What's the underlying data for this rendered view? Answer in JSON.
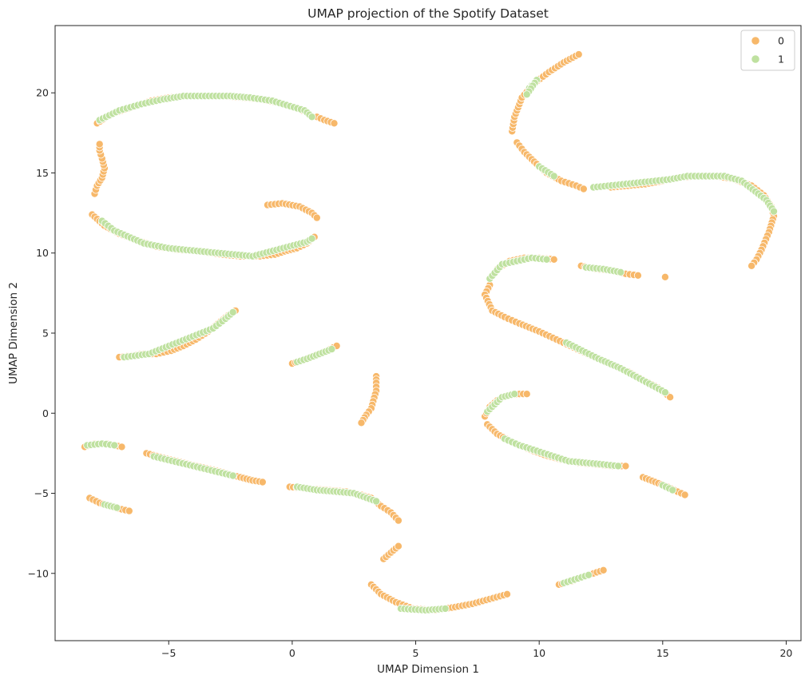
{
  "chart_data": {
    "type": "scatter",
    "title": "UMAP projection of the Spotify Dataset",
    "xlabel": "UMAP Dimension 1",
    "ylabel": "UMAP Dimension 2",
    "xlim": [
      -9.6,
      20.6
    ],
    "ylim": [
      -14.2,
      24.2
    ],
    "x_ticks": [
      -5,
      0,
      5,
      10,
      15,
      20
    ],
    "y_ticks": [
      -10,
      -5,
      0,
      5,
      10,
      15,
      20
    ],
    "x_tick_labels": [
      "−5",
      "0",
      "5",
      "10",
      "15",
      "20"
    ],
    "y_tick_labels": [
      "−10",
      "−5",
      "0",
      "5",
      "10",
      "15",
      "20"
    ],
    "grid": false,
    "legend": {
      "position": "top-right",
      "entries": [
        "0",
        "1"
      ]
    },
    "colors": {
      "0": "#f7b86a",
      "1": "#bfe1a0"
    },
    "series": [
      {
        "name": "0",
        "color": "#f7b86a",
        "segments": [
          [
            [
              -7.9,
              18.1
            ],
            [
              -7.3,
              18.7
            ],
            [
              -6.5,
              19.1
            ],
            [
              -5.7,
              19.5
            ],
            [
              -5.0,
              19.7
            ],
            [
              -4.3,
              19.8
            ],
            [
              -3.5,
              19.8
            ],
            [
              -2.8,
              19.8
            ],
            [
              -2.0,
              19.7
            ],
            [
              -1.3,
              19.6
            ],
            [
              -0.6,
              19.4
            ],
            [
              0.1,
              19.1
            ],
            [
              0.4,
              18.9
            ]
          ],
          [
            [
              1.0,
              18.5
            ],
            [
              1.3,
              18.3
            ],
            [
              1.7,
              18.1
            ]
          ],
          [
            [
              -8.0,
              13.7
            ],
            [
              -7.9,
              14.2
            ],
            [
              -7.7,
              14.7
            ],
            [
              -7.6,
              15.3
            ],
            [
              -7.7,
              15.9
            ],
            [
              -7.8,
              16.4
            ],
            [
              -7.8,
              16.8
            ]
          ],
          [
            [
              -8.1,
              12.4
            ],
            [
              -7.6,
              11.7
            ],
            [
              -7.0,
              11.2
            ],
            [
              -6.3,
              10.8
            ],
            [
              -5.5,
              10.4
            ],
            [
              -4.6,
              10.2
            ],
            [
              -3.7,
              10.1
            ],
            [
              -2.8,
              9.9
            ],
            [
              -2.1,
              9.8
            ],
            [
              -1.3,
              9.8
            ],
            [
              -0.7,
              9.9
            ],
            [
              -0.3,
              10.1
            ],
            [
              0.2,
              10.3
            ],
            [
              0.6,
              10.6
            ],
            [
              0.9,
              11.0
            ]
          ],
          [
            [
              -1.0,
              13.0
            ],
            [
              -0.4,
              13.1
            ],
            [
              0.3,
              12.9
            ],
            [
              0.8,
              12.5
            ],
            [
              1.0,
              12.2
            ]
          ],
          [
            [
              -7.0,
              3.5
            ],
            [
              -6.5,
              3.6
            ],
            [
              -6.0,
              3.7
            ],
            [
              -5.5,
              3.7
            ],
            [
              -4.9,
              3.9
            ],
            [
              -4.4,
              4.2
            ],
            [
              -3.9,
              4.6
            ],
            [
              -3.4,
              5.1
            ],
            [
              -3.0,
              5.6
            ],
            [
              -2.6,
              6.1
            ],
            [
              -2.3,
              6.4
            ]
          ],
          [
            [
              0.0,
              3.1
            ],
            [
              0.4,
              3.3
            ],
            [
              0.9,
              3.6
            ],
            [
              1.4,
              3.9
            ],
            [
              1.8,
              4.2
            ]
          ],
          [
            [
              3.4,
              2.3
            ],
            [
              3.4,
              1.9
            ],
            [
              3.4,
              1.4
            ],
            [
              3.2,
              0.3
            ],
            [
              3.0,
              -0.1
            ],
            [
              2.8,
              -0.6
            ]
          ],
          [
            [
              -8.4,
              -2.1
            ],
            [
              -8.0,
              -1.9
            ],
            [
              -7.5,
              -1.9
            ],
            [
              -6.9,
              -2.1
            ]
          ],
          [
            [
              -5.9,
              -2.5
            ],
            [
              -5.2,
              -2.8
            ],
            [
              -4.4,
              -3.1
            ],
            [
              -3.6,
              -3.4
            ],
            [
              -2.8,
              -3.7
            ],
            [
              -2.1,
              -4.0
            ],
            [
              -1.6,
              -4.2
            ],
            [
              -1.2,
              -4.3
            ]
          ],
          [
            [
              -8.2,
              -5.3
            ],
            [
              -7.8,
              -5.6
            ],
            [
              -7.4,
              -5.8
            ],
            [
              -6.9,
              -6.0
            ],
            [
              -6.6,
              -6.1
            ]
          ],
          [
            [
              -0.1,
              -4.6
            ],
            [
              0.6,
              -4.7
            ],
            [
              1.4,
              -4.8
            ],
            [
              2.2,
              -4.9
            ],
            [
              2.8,
              -5.1
            ],
            [
              3.2,
              -5.3
            ],
            [
              3.6,
              -5.8
            ],
            [
              4.0,
              -6.2
            ],
            [
              4.3,
              -6.7
            ]
          ],
          [
            [
              3.7,
              -9.1
            ],
            [
              4.0,
              -8.7
            ],
            [
              4.3,
              -8.3
            ]
          ],
          [
            [
              3.2,
              -10.7
            ],
            [
              3.6,
              -11.3
            ],
            [
              4.2,
              -11.8
            ],
            [
              4.9,
              -12.2
            ],
            [
              5.8,
              -12.3
            ],
            [
              6.6,
              -12.1
            ],
            [
              7.3,
              -11.9
            ],
            [
              8.0,
              -11.6
            ],
            [
              8.7,
              -11.3
            ]
          ],
          [
            [
              10.8,
              -10.7
            ],
            [
              11.3,
              -10.5
            ],
            [
              11.8,
              -10.2
            ],
            [
              12.2,
              -10.0
            ],
            [
              12.6,
              -9.8
            ]
          ],
          [
            [
              8.9,
              17.6
            ],
            [
              9.0,
              18.5
            ],
            [
              9.3,
              19.7
            ],
            [
              9.8,
              20.6
            ],
            [
              10.4,
              21.3
            ],
            [
              11.0,
              21.9
            ],
            [
              11.6,
              22.4
            ]
          ],
          [
            [
              9.1,
              16.9
            ],
            [
              9.4,
              16.3
            ],
            [
              9.8,
              15.7
            ],
            [
              10.3,
              15.0
            ],
            [
              10.9,
              14.5
            ],
            [
              11.5,
              14.2
            ],
            [
              11.8,
              14.0
            ]
          ],
          [
            [
              12.9,
              14.1
            ],
            [
              13.6,
              14.2
            ],
            [
              14.3,
              14.3
            ],
            [
              15.0,
              14.5
            ],
            [
              15.6,
              14.7
            ],
            [
              16.4,
              14.8
            ],
            [
              17.2,
              14.8
            ],
            [
              17.9,
              14.6
            ],
            [
              18.6,
              14.2
            ],
            [
              19.1,
              13.6
            ],
            [
              19.4,
              12.9
            ],
            [
              19.5,
              12.3
            ],
            [
              19.3,
              11.3
            ],
            [
              19.0,
              10.2
            ],
            [
              18.8,
              9.6
            ],
            [
              18.6,
              9.2
            ]
          ],
          [
            [
              8.0,
              8.0
            ],
            [
              7.8,
              7.4
            ],
            [
              8.1,
              6.4
            ],
            [
              8.6,
              6.0
            ],
            [
              9.2,
              5.6
            ],
            [
              10.0,
              5.1
            ],
            [
              10.7,
              4.6
            ],
            [
              11.4,
              4.1
            ],
            [
              12.1,
              3.6
            ],
            [
              12.8,
              3.1
            ],
            [
              13.6,
              2.6
            ],
            [
              14.3,
              2.0
            ],
            [
              14.8,
              1.6
            ],
            [
              15.3,
              1.0
            ]
          ],
          [
            [
              8.3,
              9.0
            ],
            [
              8.8,
              9.5
            ],
            [
              9.4,
              9.7
            ],
            [
              10.0,
              9.7
            ],
            [
              10.6,
              9.6
            ]
          ],
          [
            [
              11.7,
              9.2
            ],
            [
              12.3,
              9.0
            ],
            [
              12.9,
              8.9
            ],
            [
              13.5,
              8.7
            ],
            [
              14.0,
              8.6
            ]
          ],
          [
            [
              15.1,
              8.5
            ]
          ],
          [
            [
              7.8,
              -0.2
            ],
            [
              8.0,
              0.4
            ],
            [
              8.3,
              0.8
            ],
            [
              8.7,
              1.1
            ],
            [
              9.2,
              1.2
            ],
            [
              9.5,
              1.2
            ]
          ],
          [
            [
              7.9,
              -0.7
            ],
            [
              8.3,
              -1.3
            ],
            [
              8.9,
              -1.8
            ],
            [
              9.5,
              -2.2
            ],
            [
              10.2,
              -2.6
            ],
            [
              10.9,
              -2.9
            ],
            [
              11.6,
              -3.1
            ],
            [
              12.3,
              -3.2
            ],
            [
              13.0,
              -3.3
            ],
            [
              13.5,
              -3.3
            ]
          ],
          [
            [
              14.2,
              -4.0
            ],
            [
              14.7,
              -4.3
            ],
            [
              15.2,
              -4.6
            ],
            [
              15.6,
              -4.9
            ],
            [
              15.9,
              -5.1
            ]
          ]
        ]
      },
      {
        "name": "1",
        "color": "#bfe1a0",
        "segments": [
          [
            [
              -7.8,
              18.3
            ],
            [
              -7.0,
              18.9
            ],
            [
              -6.1,
              19.3
            ],
            [
              -5.2,
              19.6
            ],
            [
              -4.4,
              19.8
            ],
            [
              -2.5,
              19.8
            ],
            [
              -1.7,
              19.7
            ],
            [
              -0.8,
              19.5
            ],
            [
              0.5,
              18.9
            ],
            [
              0.8,
              18.5
            ]
          ],
          [
            [
              -7.7,
              12.0
            ],
            [
              -7.2,
              11.4
            ],
            [
              -6.0,
              10.6
            ],
            [
              -5.0,
              10.3
            ],
            [
              -3.0,
              10.0
            ],
            [
              -1.6,
              9.8
            ],
            [
              0.6,
              10.7
            ],
            [
              0.8,
              10.9
            ]
          ],
          [
            [
              -6.8,
              3.5
            ],
            [
              -5.8,
              3.7
            ],
            [
              -3.2,
              5.3
            ],
            [
              -2.7,
              5.9
            ],
            [
              -2.4,
              6.3
            ]
          ],
          [
            [
              0.2,
              3.2
            ],
            [
              0.6,
              3.4
            ],
            [
              1.1,
              3.7
            ],
            [
              1.6,
              4.0
            ]
          ],
          [
            [
              -8.3,
              -2.0
            ],
            [
              -7.7,
              -1.9
            ],
            [
              -7.2,
              -2.0
            ]
          ],
          [
            [
              -5.6,
              -2.7
            ],
            [
              -4.0,
              -3.3
            ],
            [
              -2.4,
              -3.9
            ]
          ],
          [
            [
              -7.6,
              -5.7
            ],
            [
              -7.1,
              -5.9
            ]
          ],
          [
            [
              0.2,
              -4.6
            ],
            [
              1.0,
              -4.8
            ],
            [
              1.8,
              -4.9
            ],
            [
              2.5,
              -5.0
            ],
            [
              3.4,
              -5.5
            ]
          ],
          [
            [
              4.4,
              -12.2
            ],
            [
              5.4,
              -12.3
            ],
            [
              6.2,
              -12.2
            ]
          ],
          [
            [
              9.6,
              20.3
            ],
            [
              9.9,
              20.8
            ],
            [
              9.5,
              19.9
            ]
          ],
          [
            [
              10.0,
              15.4
            ],
            [
              10.6,
              14.8
            ]
          ],
          [
            [
              12.2,
              14.1
            ],
            [
              15.3,
              14.6
            ],
            [
              16.0,
              14.8
            ],
            [
              17.5,
              14.8
            ],
            [
              18.2,
              14.5
            ],
            [
              19.2,
              13.3
            ],
            [
              19.5,
              12.6
            ]
          ],
          [
            [
              8.0,
              8.4
            ],
            [
              8.5,
              9.3
            ],
            [
              9.7,
              9.7
            ],
            [
              10.3,
              9.6
            ]
          ],
          [
            [
              11.1,
              4.4
            ],
            [
              12.4,
              3.4
            ],
            [
              13.3,
              2.8
            ],
            [
              15.1,
              1.3
            ]
          ],
          [
            [
              11.9,
              9.1
            ],
            [
              12.6,
              9.0
            ],
            [
              13.3,
              8.8
            ]
          ],
          [
            [
              7.9,
              0.1
            ],
            [
              8.5,
              1.0
            ],
            [
              9.0,
              1.2
            ]
          ],
          [
            [
              8.6,
              -1.6
            ],
            [
              9.2,
              -2.0
            ],
            [
              11.2,
              -3.0
            ],
            [
              12.6,
              -3.2
            ],
            [
              13.2,
              -3.3
            ]
          ],
          [
            [
              15.0,
              -4.5
            ],
            [
              15.4,
              -4.8
            ]
          ],
          [
            [
              11.0,
              -10.6
            ],
            [
              12.0,
              -10.1
            ]
          ]
        ]
      }
    ]
  }
}
